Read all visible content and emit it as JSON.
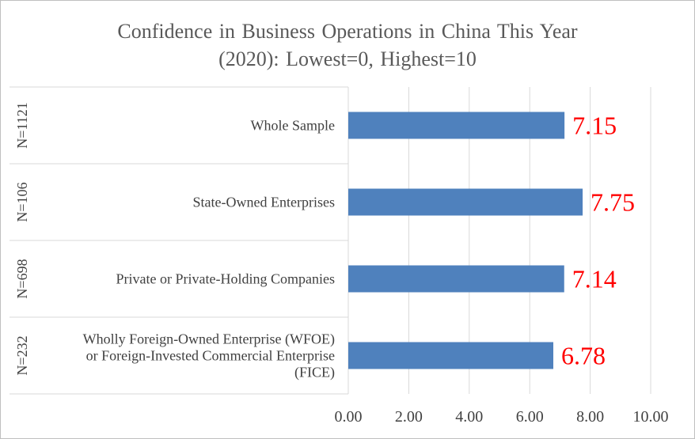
{
  "chart_data": {
    "type": "bar",
    "orientation": "horizontal",
    "title_lines": [
      "Confidence in Business Operations in China This Year",
      "(2020): Lowest=0, Highest=10"
    ],
    "categories": [
      {
        "label_lines": [
          "Whole Sample"
        ],
        "group": "N=1121"
      },
      {
        "label_lines": [
          "State-Owned Enterprises"
        ],
        "group": "N=106"
      },
      {
        "label_lines": [
          "Private or Private-Holding Companies"
        ],
        "group": "N=698"
      },
      {
        "label_lines": [
          "Wholly Foreign-Owned Enterprise (WFOE)",
          "or Foreign-Invested Commercial Enterprise",
          "(FICE)"
        ],
        "group": "N=232"
      }
    ],
    "values": [
      7.15,
      7.75,
      7.14,
      6.78
    ],
    "data_labels": [
      "7.15",
      "7.75",
      "7.14",
      "6.78"
    ],
    "xlim": [
      0,
      10
    ],
    "xticks": [
      0,
      2,
      4,
      6,
      8,
      10
    ],
    "xtick_labels": [
      "0.00",
      "2.00",
      "4.00",
      "6.00",
      "8.00",
      "10.00"
    ],
    "bar_color": "#4f81bd",
    "data_label_color": "#ff0000",
    "grid": "vertical gridlines",
    "legend": "none"
  }
}
